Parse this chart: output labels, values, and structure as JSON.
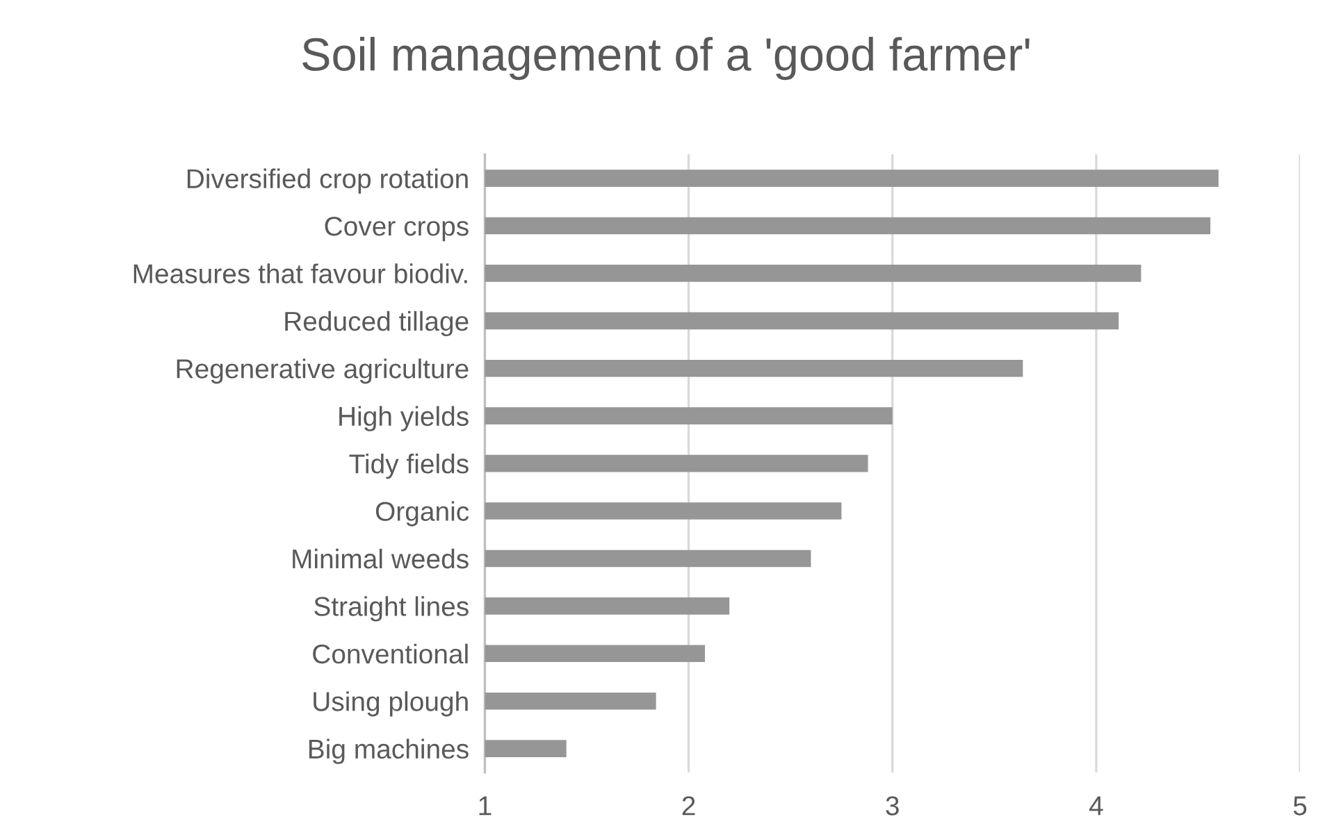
{
  "chart_data": {
    "type": "bar",
    "orientation": "horizontal",
    "title": "Soil management of a 'good farmer'",
    "categories": [
      "Diversified crop rotation",
      "Cover crops",
      "Measures that favour biodiv.",
      "Reduced tillage",
      "Regenerative agriculture",
      "High yields",
      "Tidy fields",
      "Organic",
      "Minimal weeds",
      "Straight lines",
      "Conventional",
      "Using plough",
      "Big machines"
    ],
    "values": [
      4.6,
      4.56,
      4.22,
      4.11,
      3.64,
      3.0,
      2.88,
      2.75,
      2.6,
      2.2,
      2.08,
      1.84,
      1.4
    ],
    "color": "#969696",
    "xlim": [
      1,
      5
    ],
    "xticks": [
      1,
      2,
      3,
      4,
      5
    ],
    "grid": "x",
    "legend": false
  }
}
